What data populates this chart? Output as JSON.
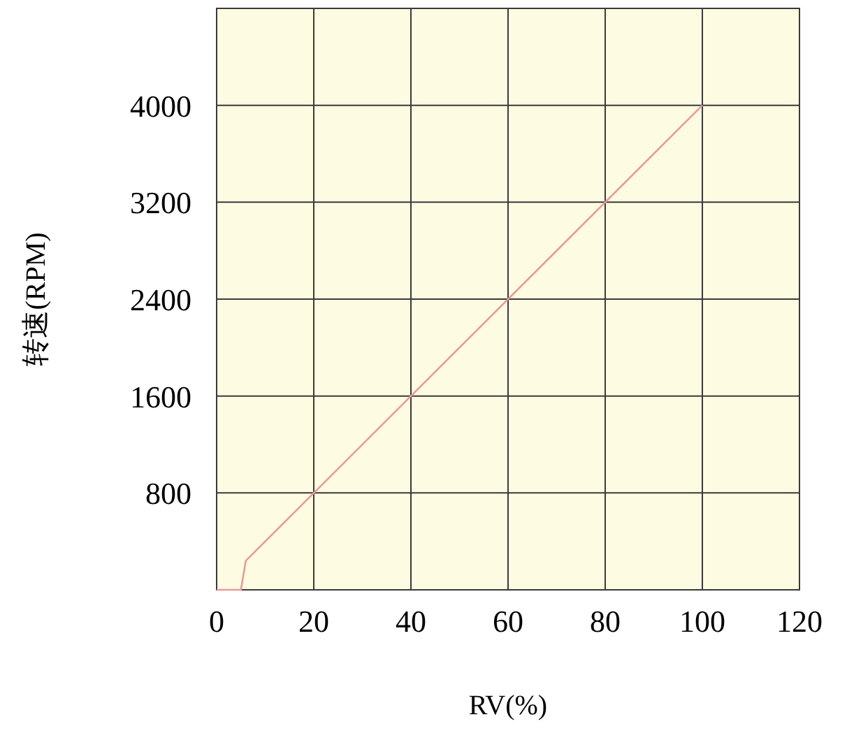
{
  "chart_data": {
    "type": "line",
    "xlabel": "RV(%)",
    "ylabel": "转速(RPM)",
    "x": [
      0,
      5,
      6,
      100
    ],
    "series": [
      {
        "color": "#e89a9a",
        "values": [
          0,
          0,
          240,
          4000
        ]
      }
    ],
    "xlim": [
      0,
      120
    ],
    "xticks": [
      0,
      20,
      40,
      60,
      80,
      100,
      120
    ],
    "ylim": [
      0,
      4800
    ],
    "yticks": [
      800,
      1600,
      2400,
      3200,
      4000
    ],
    "grid": true,
    "marker": "none",
    "line_style": "solid"
  }
}
